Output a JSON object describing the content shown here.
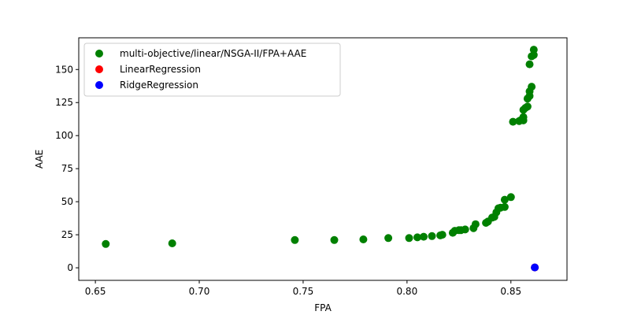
{
  "chart_data": {
    "type": "scatter",
    "xlabel": "FPA",
    "ylabel": "AAE",
    "xlim": [
      0.642,
      0.877
    ],
    "ylim": [
      -9.5,
      174
    ],
    "xticks": [
      0.65,
      0.7,
      0.75,
      0.8,
      0.85
    ],
    "xtick_labels": [
      "0.65",
      "0.70",
      "0.75",
      "0.80",
      "0.85"
    ],
    "yticks": [
      0,
      25,
      50,
      75,
      100,
      125,
      150
    ],
    "ytick_labels": [
      "0",
      "25",
      "50",
      "75",
      "100",
      "125",
      "150"
    ],
    "grid": false,
    "legend_position": "top-left",
    "series": [
      {
        "name": "multi-objective/linear/NSGA-II/FPA+AAE",
        "color": "#008000",
        "points": [
          [
            0.655,
            18
          ],
          [
            0.687,
            18.5
          ],
          [
            0.746,
            21
          ],
          [
            0.765,
            21
          ],
          [
            0.779,
            21.5
          ],
          [
            0.791,
            22.5
          ],
          [
            0.801,
            22.5
          ],
          [
            0.805,
            23
          ],
          [
            0.808,
            23.5
          ],
          [
            0.812,
            24
          ],
          [
            0.816,
            24.5
          ],
          [
            0.817,
            25
          ],
          [
            0.822,
            26.5
          ],
          [
            0.823,
            28
          ],
          [
            0.825,
            28.5
          ],
          [
            0.826,
            28.5
          ],
          [
            0.828,
            29
          ],
          [
            0.832,
            30
          ],
          [
            0.833,
            33
          ],
          [
            0.838,
            34
          ],
          [
            0.839,
            35
          ],
          [
            0.841,
            38
          ],
          [
            0.842,
            38.5
          ],
          [
            0.843,
            42
          ],
          [
            0.844,
            45
          ],
          [
            0.845,
            45.5
          ],
          [
            0.847,
            46
          ],
          [
            0.847,
            51.5
          ],
          [
            0.85,
            53.5
          ],
          [
            0.851,
            110.5
          ],
          [
            0.854,
            111
          ],
          [
            0.855,
            112
          ],
          [
            0.856,
            111.5
          ],
          [
            0.856,
            114
          ],
          [
            0.856,
            119.5
          ],
          [
            0.857,
            121
          ],
          [
            0.858,
            122
          ],
          [
            0.858,
            128
          ],
          [
            0.859,
            130
          ],
          [
            0.859,
            133.5
          ],
          [
            0.86,
            137
          ],
          [
            0.859,
            154
          ],
          [
            0.86,
            160
          ],
          [
            0.861,
            161
          ],
          [
            0.861,
            165
          ]
        ]
      },
      {
        "name": "LinearRegression",
        "color": "#ff0000",
        "points": [
          [
            0.8615,
            0.3
          ]
        ]
      },
      {
        "name": "RidgeRegression",
        "color": "#0000ff",
        "points": [
          [
            0.8615,
            0.3
          ]
        ]
      }
    ]
  }
}
